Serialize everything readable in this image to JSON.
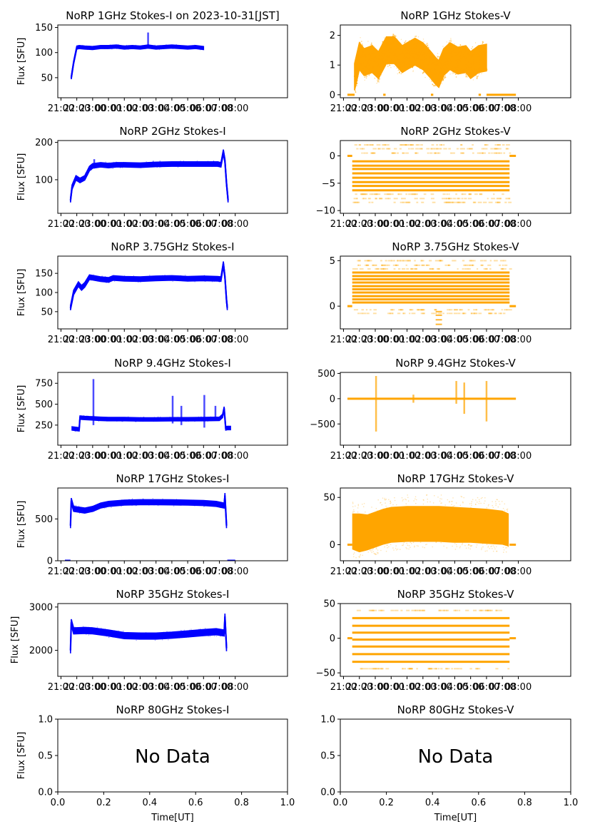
{
  "figure": {
    "colors": {
      "stokes_i": "#0000ff",
      "stokes_v": "#ffa500",
      "axis": "#000000"
    }
  },
  "chart_data": [
    {
      "type": "scatter",
      "title": "NoRP 1GHz Stokes-I on 2023-10-31[JST]",
      "xlabel": "",
      "ylabel": "Flux [SFU]",
      "ylim": [
        10,
        155
      ],
      "yticks": [
        50,
        100,
        150
      ],
      "xlim": [
        -3.2,
        11.3
      ],
      "xticks": [
        -3,
        -2,
        -1,
        0,
        1,
        2,
        3,
        4,
        5,
        6,
        7,
        8
      ],
      "xtick_labels": [
        "21:00",
        "22:00",
        "23:00",
        "00:00",
        "01:00",
        "02:00",
        "03:00",
        "04:00",
        "05:00",
        "06:00",
        "07:00",
        "08:00"
      ],
      "series": [
        {
          "name": "Stokes-I",
          "color": "#0000ff",
          "band": 3,
          "x": [
            -2.35,
            -2.2,
            -2.0,
            -1.85,
            -1.5,
            -1.0,
            -0.5,
            0,
            0.5,
            1,
            1.5,
            2,
            2.5,
            3,
            3.5,
            4,
            4.5,
            5,
            5.5,
            6.0
          ],
          "y": [
            50,
            80,
            110,
            111,
            110,
            109,
            111,
            111,
            112,
            110,
            111,
            110,
            112,
            110,
            111,
            112,
            111,
            110,
            111,
            109
          ]
        }
      ],
      "spikes": [
        {
          "x": 2.5,
          "y0": 112,
          "y1": 140
        }
      ]
    },
    {
      "type": "scatter",
      "title": "NoRP 1GHz Stokes-V",
      "xlabel": "",
      "ylabel": "",
      "ylim": [
        -0.1,
        2.35
      ],
      "yticks": [
        0,
        1,
        2
      ],
      "xlim": [
        -3.2,
        11.3
      ],
      "xticks": [
        -3,
        -2,
        -1,
        0,
        1,
        2,
        3,
        4,
        5,
        6,
        7,
        8
      ],
      "xtick_labels": [
        "21:00",
        "22:00",
        "23:00",
        "00:00",
        "01:00",
        "02:00",
        "03:00",
        "04:00",
        "05:00",
        "06:00",
        "07:00",
        "08:00"
      ],
      "series": [
        {
          "name": "Stokes-V",
          "color": "#ffa500",
          "band": 0.45,
          "x": [
            -2.3,
            -2.0,
            -1.7,
            -1.2,
            -0.8,
            -0.3,
            0.2,
            0.7,
            1.0,
            1.5,
            2.0,
            2.5,
            2.8,
            3.0,
            3.3,
            3.7,
            4.2,
            4.7,
            5.0,
            5.5,
            6.0
          ],
          "y": [
            0.6,
            1.3,
            1.1,
            1.2,
            1.0,
            1.5,
            1.5,
            1.2,
            1.3,
            1.45,
            1.3,
            1.0,
            0.8,
            0.7,
            1.1,
            1.3,
            1.15,
            1.2,
            1.0,
            1.2,
            1.25
          ]
        }
      ],
      "flat_segments": [
        [
          -2.75,
          -2.3,
          0
        ],
        [
          -0.5,
          -0.35,
          0
        ],
        [
          2.5,
          2.65,
          0
        ],
        [
          5.5,
          5.65,
          0
        ],
        [
          6.0,
          7.85,
          0
        ]
      ]
    },
    {
      "type": "scatter",
      "title": "NoRP 2GHz Stokes-I",
      "xlabel": "",
      "ylabel": "Flux [SFU]",
      "ylim": [
        10,
        205
      ],
      "yticks": [
        100,
        200
      ],
      "xlim": [
        -3.2,
        11.3
      ],
      "xticks": [
        -3,
        -2,
        -1,
        0,
        1,
        2,
        3,
        4,
        5,
        6,
        7,
        8
      ],
      "xtick_labels": [
        "21:00",
        "22:00",
        "23:00",
        "00:00",
        "01:00",
        "02:00",
        "03:00",
        "04:00",
        "05:00",
        "06:00",
        "07:00",
        "08:00"
      ],
      "series": [
        {
          "name": "Stokes-I",
          "color": "#0000ff",
          "band": 6,
          "x": [
            -2.4,
            -2.3,
            -2.05,
            -1.8,
            -1.5,
            -1.2,
            -1.0,
            -0.5,
            0,
            0.5,
            1,
            2,
            3,
            4,
            5,
            6,
            6.9,
            7.1,
            7.25,
            7.35,
            7.45,
            7.55
          ],
          "y": [
            45,
            80,
            105,
            98,
            105,
            130,
            137,
            140,
            138,
            140,
            140,
            139,
            141,
            142,
            142,
            142,
            142,
            140,
            175,
            150,
            90,
            45
          ]
        }
      ],
      "spikes": [
        {
          "x": -0.9,
          "y0": 140,
          "y1": 155
        }
      ]
    },
    {
      "type": "scatter",
      "title": "NoRP 2GHz Stokes-V",
      "xlabel": "",
      "ylabel": "",
      "ylim": [
        -10.5,
        2.8
      ],
      "yticks": [
        -10,
        -5,
        0
      ],
      "xlim": [
        -3.2,
        11.3
      ],
      "xticks": [
        -3,
        -2,
        -1,
        0,
        1,
        2,
        3,
        4,
        5,
        6,
        7,
        8
      ],
      "xtick_labels": [
        "21:00",
        "22:00",
        "23:00",
        "00:00",
        "01:00",
        "02:00",
        "03:00",
        "04:00",
        "05:00",
        "06:00",
        "07:00",
        "08:00"
      ],
      "levels": {
        "x0": -2.45,
        "x1": 7.45,
        "solid": [
          -1,
          -1.8,
          -2.4,
          -3.2,
          -4,
          -4.8,
          -5.5,
          -6.3
        ],
        "faint": [
          0.5,
          1.3,
          2.0,
          -7,
          -7.8,
          -8.5
        ]
      },
      "flat_segments": [
        [
          -2.75,
          -2.45,
          0
        ],
        [
          7.45,
          7.85,
          0
        ]
      ]
    },
    {
      "type": "scatter",
      "title": "NoRP 3.75GHz Stokes-I",
      "xlabel": "",
      "ylabel": "Flux [SFU]",
      "ylim": [
        5,
        195
      ],
      "yticks": [
        50,
        100,
        150
      ],
      "xlim": [
        -3.2,
        11.3
      ],
      "xticks": [
        -3,
        -2,
        -1,
        0,
        1,
        2,
        3,
        4,
        5,
        6,
        7,
        8
      ],
      "xtick_labels": [
        "21:00",
        "22:00",
        "23:00",
        "00:00",
        "01:00",
        "02:00",
        "03:00",
        "04:00",
        "05:00",
        "06:00",
        "07:00",
        "08:00"
      ],
      "series": [
        {
          "name": "Stokes-I",
          "color": "#0000ff",
          "band": 6,
          "x": [
            -2.4,
            -2.2,
            -1.9,
            -1.7,
            -1.5,
            -1.2,
            -0.5,
            0,
            0.3,
            1,
            2,
            3,
            4,
            5,
            6,
            6.9,
            7.1,
            7.25,
            7.35,
            7.45,
            7.5
          ],
          "y": [
            60,
            100,
            122,
            112,
            120,
            140,
            135,
            133,
            138,
            136,
            135,
            137,
            138,
            136,
            137,
            136,
            135,
            175,
            140,
            80,
            60
          ]
        }
      ]
    },
    {
      "type": "scatter",
      "title": "NoRP 3.75GHz Stokes-V",
      "xlabel": "",
      "ylabel": "",
      "ylim": [
        -2.5,
        5.5
      ],
      "yticks": [
        0,
        5
      ],
      "xlim": [
        -3.2,
        11.3
      ],
      "xticks": [
        -3,
        -2,
        -1,
        0,
        1,
        2,
        3,
        4,
        5,
        6,
        7,
        8
      ],
      "xtick_labels": [
        "21:00",
        "22:00",
        "23:00",
        "00:00",
        "01:00",
        "02:00",
        "03:00",
        "04:00",
        "05:00",
        "06:00",
        "07:00",
        "08:00"
      ],
      "levels": {
        "x0": -2.45,
        "x1": 7.45,
        "solid": [
          0.4,
          0.75,
          1.1,
          1.5,
          1.85,
          2.2,
          2.6,
          2.95,
          3.3,
          3.7
        ],
        "faint": [
          4.1,
          4.5,
          5.0,
          -0.4,
          -0.8
        ]
      },
      "dip": {
        "x": 3.0,
        "low": [
          -0.6,
          -1.0,
          -1.5,
          -2.0
        ]
      },
      "flat_segments": [
        [
          -2.75,
          -2.45,
          0
        ],
        [
          7.45,
          7.85,
          0
        ]
      ]
    },
    {
      "type": "scatter",
      "title": "NoRP 9.4GHz Stokes-I",
      "xlabel": "",
      "ylabel": "Flux [SFU]",
      "ylim": [
        10,
        880
      ],
      "yticks": [
        250,
        500,
        750
      ],
      "xlim": [
        -3.2,
        11.3
      ],
      "xticks": [
        -3,
        -2,
        -1,
        0,
        1,
        2,
        3,
        4,
        5,
        6,
        7,
        8
      ],
      "xtick_labels": [
        "21:00",
        "22:00",
        "23:00",
        "00:00",
        "01:00",
        "02:00",
        "03:00",
        "04:00",
        "05:00",
        "06:00",
        "07:00",
        "08:00"
      ],
      "series": [
        {
          "name": "Stokes-I",
          "color": "#0000ff",
          "band": 20,
          "x": [
            -2.3,
            -1.85,
            -1.8,
            -1.5,
            -1.0,
            -0.5,
            0,
            1,
            2,
            3,
            4,
            5,
            6,
            7,
            7.2,
            7.3,
            7.4,
            7.5,
            7.7
          ],
          "y": [
            210,
            200,
            340,
            335,
            330,
            325,
            322,
            322,
            318,
            318,
            320,
            320,
            322,
            325,
            360,
            450,
            210,
            215,
            215
          ]
        }
      ],
      "spikes": [
        {
          "x": -0.95,
          "y0": 250,
          "y1": 800
        },
        {
          "x": 4.05,
          "y0": 270,
          "y1": 600
        },
        {
          "x": 4.6,
          "y0": 250,
          "y1": 480
        },
        {
          "x": 6.05,
          "y0": 220,
          "y1": 610
        },
        {
          "x": 6.75,
          "y0": 300,
          "y1": 480
        }
      ]
    },
    {
      "type": "scatter",
      "title": "NoRP 9.4GHz Stokes-V",
      "xlabel": "",
      "ylabel": "",
      "ylim": [
        -920,
        520
      ],
      "yticks": [
        -500,
        0,
        500
      ],
      "xlim": [
        -3.2,
        11.3
      ],
      "xticks": [
        -3,
        -2,
        -1,
        0,
        1,
        2,
        3,
        4,
        5,
        6,
        7,
        8
      ],
      "xtick_labels": [
        "21:00",
        "22:00",
        "23:00",
        "00:00",
        "01:00",
        "02:00",
        "03:00",
        "04:00",
        "05:00",
        "06:00",
        "07:00",
        "08:00"
      ],
      "levels": {
        "x0": -2.75,
        "x1": 7.85,
        "solid": [
          0
        ],
        "faint": []
      },
      "spikes": [
        {
          "x": -0.95,
          "y0": -650,
          "y1": 450
        },
        {
          "x": 4.6,
          "y0": -300,
          "y1": 320
        },
        {
          "x": 6.0,
          "y0": -450,
          "y1": 350
        },
        {
          "x": 1.4,
          "y0": -80,
          "y1": 80
        },
        {
          "x": 4.1,
          "y0": -100,
          "y1": 350
        }
      ]
    },
    {
      "type": "scatter",
      "title": "NoRP 17GHz Stokes-I",
      "xlabel": "",
      "ylabel": "Flux [SFU]",
      "ylim": [
        0,
        870
      ],
      "yticks": [
        0,
        500
      ],
      "xlim": [
        -3.2,
        11.3
      ],
      "xticks": [
        -3,
        -2,
        -1,
        0,
        1,
        2,
        3,
        4,
        5,
        6,
        7,
        8
      ],
      "xtick_labels": [
        "21:00",
        "22:00",
        "23:00",
        "00:00",
        "01:00",
        "02:00",
        "03:00",
        "04:00",
        "05:00",
        "06:00",
        "07:00",
        "08:00"
      ],
      "series": [
        {
          "name": "Stokes-I",
          "color": "#0000ff",
          "band": 30,
          "x": [
            -2.4,
            -2.35,
            -2.2,
            -1.5,
            -1.0,
            -0.5,
            0,
            1,
            2,
            3,
            4,
            5,
            6,
            6.8,
            7.3,
            7.35,
            7.45
          ],
          "y": [
            420,
            720,
            620,
            600,
            620,
            660,
            680,
            695,
            700,
            700,
            698,
            695,
            690,
            680,
            660,
            780,
            420
          ]
        }
      ],
      "flat_segments": [
        [
          -2.75,
          -2.4,
          0
        ],
        [
          7.5,
          8.0,
          0
        ]
      ]
    },
    {
      "type": "scatter",
      "title": "NoRP 17GHz Stokes-V",
      "xlabel": "",
      "ylabel": "",
      "ylim": [
        -17,
        60
      ],
      "yticks": [
        0,
        50
      ],
      "xlim": [
        -3.2,
        11.3
      ],
      "xticks": [
        -3,
        -2,
        -1,
        0,
        1,
        2,
        3,
        4,
        5,
        6,
        7,
        8
      ],
      "xtick_labels": [
        "21:00",
        "22:00",
        "23:00",
        "00:00",
        "01:00",
        "02:00",
        "03:00",
        "04:00",
        "05:00",
        "06:00",
        "07:00",
        "08:00"
      ],
      "series": [
        {
          "name": "Stokes-V",
          "color": "#ffa500",
          "x": [
            -2.45,
            -2.0,
            -1.5,
            -1.0,
            -0.5,
            0,
            1,
            2,
            3,
            4,
            5,
            6,
            7,
            7.4
          ],
          "lo": [
            -5,
            -8,
            -6,
            -3,
            0,
            2,
            3,
            3,
            3,
            2,
            2,
            1,
            0,
            -2
          ],
          "hi": [
            33,
            33,
            32,
            35,
            38,
            40,
            41,
            41,
            41,
            40,
            39,
            38,
            36,
            33
          ]
        }
      ],
      "flat_segments": [
        [
          -2.75,
          -2.45,
          0
        ],
        [
          7.45,
          7.85,
          0
        ]
      ]
    },
    {
      "type": "scatter",
      "title": "NoRP 35GHz Stokes-I",
      "xlabel": "",
      "ylabel": "Flux [SFU]",
      "ylim": [
        1400,
        3080
      ],
      "yticks": [
        2000,
        3000
      ],
      "xlim": [
        -3.2,
        11.3
      ],
      "xticks": [
        -3,
        -2,
        -1,
        0,
        1,
        2,
        3,
        4,
        5,
        6,
        7,
        8
      ],
      "xtick_labels": [
        "21:00",
        "22:00",
        "23:00",
        "00:00",
        "01:00",
        "02:00",
        "03:00",
        "04:00",
        "05:00",
        "06:00",
        "07:00",
        "08:00"
      ],
      "series": [
        {
          "name": "Stokes-I",
          "color": "#0000ff",
          "band": 70,
          "x": [
            -2.4,
            -2.35,
            -2.2,
            -1.5,
            -1.0,
            0,
            1,
            2,
            3,
            4,
            5,
            6,
            6.8,
            7.3,
            7.35,
            7.45
          ],
          "y": [
            2000,
            2650,
            2450,
            2460,
            2450,
            2400,
            2340,
            2330,
            2330,
            2350,
            2380,
            2410,
            2430,
            2400,
            2780,
            2050
          ]
        }
      ]
    },
    {
      "type": "scatter",
      "title": "NoRP 35GHz Stokes-V",
      "xlabel": "",
      "ylabel": "",
      "ylim": [
        -55,
        50
      ],
      "yticks": [
        -50,
        0,
        50
      ],
      "xlim": [
        -3.2,
        11.3
      ],
      "xticks": [
        -3,
        -2,
        -1,
        0,
        1,
        2,
        3,
        4,
        5,
        6,
        7,
        8
      ],
      "xtick_labels": [
        "21:00",
        "22:00",
        "23:00",
        "00:00",
        "01:00",
        "02:00",
        "03:00",
        "04:00",
        "05:00",
        "06:00",
        "07:00",
        "08:00"
      ],
      "levels": {
        "x0": -2.45,
        "x1": 7.45,
        "solid": [
          29,
          18,
          8,
          -2,
          -12,
          -23,
          -34
        ],
        "faint": [
          40,
          -44
        ]
      },
      "flat_segments": [
        [
          -2.75,
          -2.45,
          0
        ],
        [
          7.45,
          7.85,
          0
        ]
      ]
    },
    {
      "type": "scatter",
      "title": "NoRP 80GHz Stokes-I",
      "xlabel": "Time[UT]",
      "ylabel": "Flux [SFU]",
      "ylim": [
        0,
        1
      ],
      "yticks": [
        0.0,
        0.5,
        1.0
      ],
      "ytick_labels": [
        "0.0",
        "0.5",
        "1.0"
      ],
      "xlim": [
        0,
        1
      ],
      "xticks": [
        0,
        0.2,
        0.4,
        0.6,
        0.8,
        1.0
      ],
      "xtick_labels": [
        "0.0",
        "0.2",
        "0.4",
        "0.6",
        "0.8",
        "1.0"
      ],
      "annotation": "No Data"
    },
    {
      "type": "scatter",
      "title": "NoRP 80GHz Stokes-V",
      "xlabel": "Time[UT]",
      "ylabel": "",
      "ylim": [
        0,
        1
      ],
      "yticks": [
        0.0,
        0.5,
        1.0
      ],
      "ytick_labels": [
        "0.0",
        "0.5",
        "1.0"
      ],
      "xlim": [
        0,
        1
      ],
      "xticks": [
        0,
        0.2,
        0.4,
        0.6,
        0.8,
        1.0
      ],
      "xtick_labels": [
        "0.0",
        "0.2",
        "0.4",
        "0.6",
        "0.8",
        "1.0"
      ],
      "annotation": "No Data"
    }
  ]
}
